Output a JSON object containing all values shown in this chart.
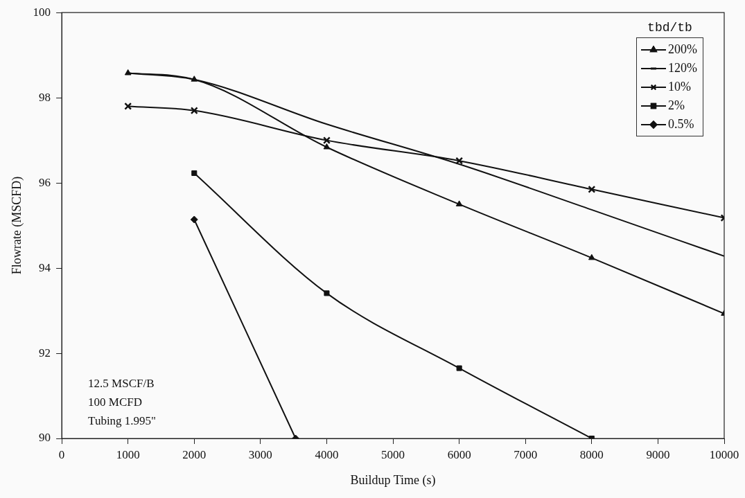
{
  "chart_data": {
    "type": "line",
    "xlabel": "Buildup Time (s)",
    "ylabel": "Flowrate (MSCFD)",
    "legend_title": "tbd/tb",
    "legend": "top right",
    "grid": false,
    "xlim": [
      0,
      10000
    ],
    "xticks": [
      0,
      1000,
      2000,
      3000,
      4000,
      5000,
      6000,
      7000,
      8000,
      9000,
      10000
    ],
    "ylim": [
      90,
      100
    ],
    "yticks": [
      90,
      92,
      94,
      96,
      98,
      100
    ],
    "x": [
      1000,
      2000,
      4000,
      6000,
      8000,
      10000
    ],
    "series": [
      {
        "name": "200%",
        "color": "#111111",
        "marker": "triangle",
        "values": [
          98.58,
          98.43,
          96.84,
          95.5,
          94.24,
          92.93
        ]
      },
      {
        "name": "120%",
        "color": "#111111",
        "marker": "none",
        "values": [
          98.58,
          98.43,
          97.38,
          96.44,
          95.37,
          94.28
        ]
      },
      {
        "name": "10%",
        "color": "#111111",
        "marker": "cross",
        "values": [
          97.8,
          97.7,
          97.0,
          96.52,
          95.85,
          95.18
        ]
      },
      {
        "name": "2%",
        "color": "#111111",
        "marker": "square",
        "values": [
          null,
          96.23,
          93.41,
          91.65,
          90.0,
          null
        ]
      },
      {
        "name": "0.5%",
        "color": "#111111",
        "marker": "diamond",
        "x": [
          2000,
          3530
        ],
        "values": [
          95.14,
          90.0
        ]
      }
    ],
    "annotations": [
      "12.5 MSCF/B\n100 MCFD\nTubing 1.995\""
    ]
  }
}
